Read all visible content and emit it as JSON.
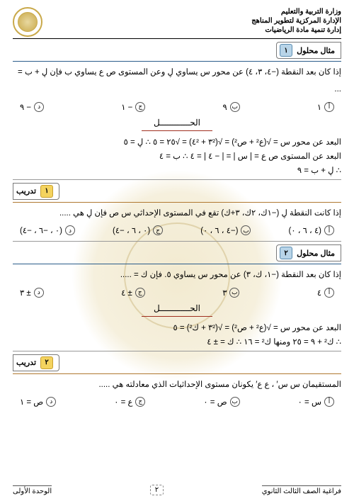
{
  "header": {
    "line1": "وزارة التربية والتعليم",
    "line2": "الإدارة المركزية لتطوير المناهج",
    "line3": "إدارة تنمية مادة الرياضيات"
  },
  "sections": {
    "solved1": {
      "title": "مثال محلول",
      "num": "١"
    },
    "ex1": {
      "title": "تدريب",
      "num": "١"
    },
    "solved2": {
      "title": "مثال محلول",
      "num": "٢"
    },
    "ex2": {
      "title": "تدريب",
      "num": "٢"
    }
  },
  "q1": {
    "text": "إذا كان بعد النقطة (−٤، ٣، ٤) عن محور س يساوي ڸ وعن المستوى ص ع يساوي ب فإن ڸ + ب =",
    "dots": "...",
    "opts": {
      "a": "١",
      "b": "٩",
      "c": "− ١",
      "d": "− ٩"
    }
  },
  "sol_label": "الحــــــــــــل",
  "sol1": {
    "l1": "البعد عن محور س = √(ع² + ص²) = √(٣² + ٤²) = √٢٥ = ٥     ∴ ڸ = ٥",
    "l2": "البعد عن المستوى ص ع = | س | = | − ٤ | = ٤     ∴ ب = ٤",
    "l3": "∴ ڸ + ب = ٩"
  },
  "q2": {
    "text": "إذا كانت النقطة ڸ (−١ك، ٢ك، ٣+ك) تقع في المستوى الإحداثي س ص فإن ڸ هي .....",
    "opts": {
      "a": "(٤ ، ٦ ، ٠)",
      "b": "(−٤ ، ٦ ، ٠)",
      "c": "(٠ ، ٦ ، −٤)",
      "d": "(٠ ، −٦ ، −٤)"
    }
  },
  "q3": {
    "text": "إذا كان بعد النقطة (−١، ك، ٣) عن محور س يساوي ٥. فإن ك = .....",
    "opts": {
      "a": "٤",
      "b": "٣",
      "c": "± ٤",
      "d": "± ٣"
    }
  },
  "sol3": {
    "l1": "البعد عن محور س = √(ع² + ص²) = √(٣² + ك²) = ٥",
    "l2": "∴ ك² + ٩ = ٢٥        ومنها ك² = ١٦        ∴ ك = ± ٤"
  },
  "q4": {
    "text": "المستقيمان س س′ ، ع ع′ يكونان مستوى الإحداثيات الذي معادلته هي .....",
    "opts": {
      "a": "س = ٠",
      "b": "ص = ٠",
      "c": "ع = ٠",
      "d": "ص = ١"
    }
  },
  "footer": {
    "right": "فراغية الصف الثالث الثانوي",
    "mid": "٢",
    "left": "الوحدة الأولى"
  }
}
